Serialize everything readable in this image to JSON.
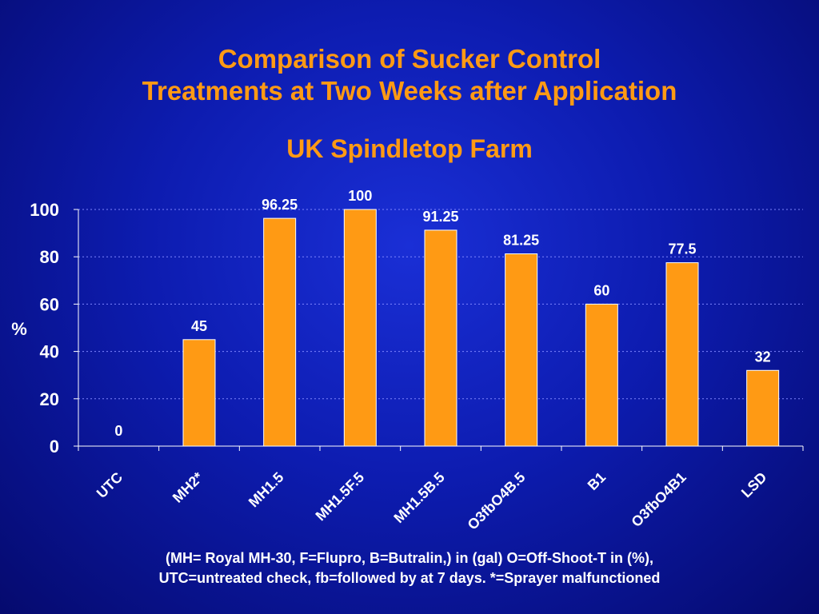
{
  "slide": {
    "title_line1": "Comparison of Sucker Control",
    "title_line2": "Treatments at Two Weeks after Application",
    "subtitle": "UK Spindletop Farm",
    "footnote_line1": "(MH= Royal MH-30, F=Flupro, B=Butralin,) in (gal) O=Off-Shoot-T in (%),",
    "footnote_line2": "UTC=untreated check, fb=followed by at 7 days.  *=Sprayer malfunctioned"
  },
  "chart_data": {
    "type": "bar",
    "categories": [
      "UTC",
      "MH2*",
      "MH1.5",
      "MH1.5F.5",
      "MH1.5B.5",
      "O3fbO4B.5",
      "B1",
      "O3fbO4B1",
      "LSD"
    ],
    "values": [
      0,
      45,
      96.25,
      100,
      91.25,
      81.25,
      60,
      77.5,
      32
    ],
    "data_labels": [
      "0",
      "45",
      "96.25",
      "100",
      "91.25",
      "81.25",
      "60",
      "77.5",
      "32"
    ],
    "ylabel": "%",
    "ylim": [
      0,
      100
    ],
    "yticks": [
      0,
      20,
      40,
      60,
      80,
      100
    ],
    "grid": "dashed horizontal",
    "colors": {
      "bar": "#ff9a14",
      "bar_edge": "#ffffff",
      "text": "#ffffff",
      "title": "#ff9a14"
    }
  }
}
